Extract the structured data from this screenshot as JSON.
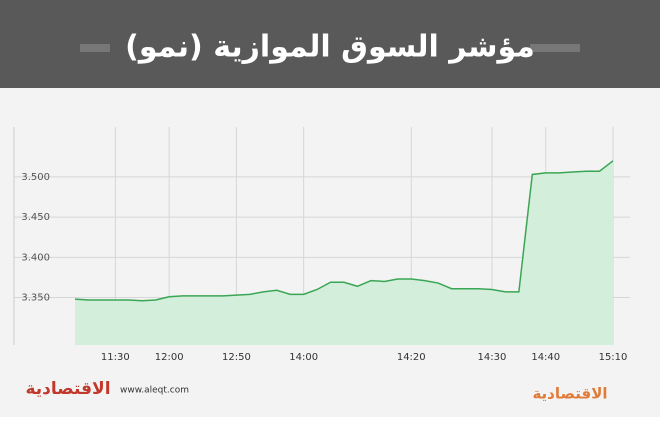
{
  "chart_data": {
    "type": "area",
    "title": "مؤشر السوق الموازية (نمو)",
    "categories": [
      null,
      null,
      null,
      "11:30",
      null,
      null,
      null,
      "12:00",
      null,
      null,
      null,
      null,
      "12:50",
      null,
      null,
      null,
      null,
      "14:00",
      null,
      null,
      null,
      null,
      null,
      null,
      null,
      "14:20",
      null,
      null,
      null,
      null,
      null,
      "14:30",
      null,
      null,
      null,
      "14:40",
      null,
      null,
      null,
      null,
      "15:10"
    ],
    "values": [
      3348,
      3347,
      3347,
      3347,
      3347,
      3346,
      3347,
      3351,
      3352,
      3352,
      3352,
      3352,
      3353,
      3354,
      3357,
      3359,
      3354,
      3354,
      3360,
      3369,
      3369,
      3364,
      3371,
      3370,
      3373,
      3373,
      3371,
      3368,
      3361,
      3361,
      3361,
      3360,
      3357,
      3357,
      3503,
      3505,
      3505,
      3506,
      3507,
      3507,
      3520
    ],
    "color": "#3aa655",
    "fill_color": "#d3eedb",
    "ylim": [
      3291,
      3562
    ],
    "yticks": [
      {
        "value": 3350,
        "label": "3.350"
      },
      {
        "value": 3400,
        "label": "3.400"
      },
      {
        "value": 3450,
        "label": "3.450"
      },
      {
        "value": 3500,
        "label": "3.500"
      }
    ],
    "grid": true
  },
  "footer": {
    "logo": "الاقتصادية",
    "url": "www.aleqt.com"
  }
}
